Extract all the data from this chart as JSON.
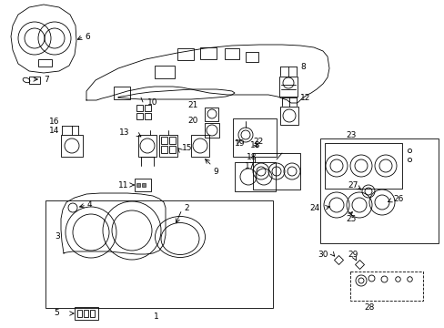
{
  "bg_color": "#ffffff",
  "lc": "#000000",
  "fig_w": 4.89,
  "fig_h": 3.6,
  "dpi": 100,
  "lw": 0.6,
  "fs": 6.5
}
